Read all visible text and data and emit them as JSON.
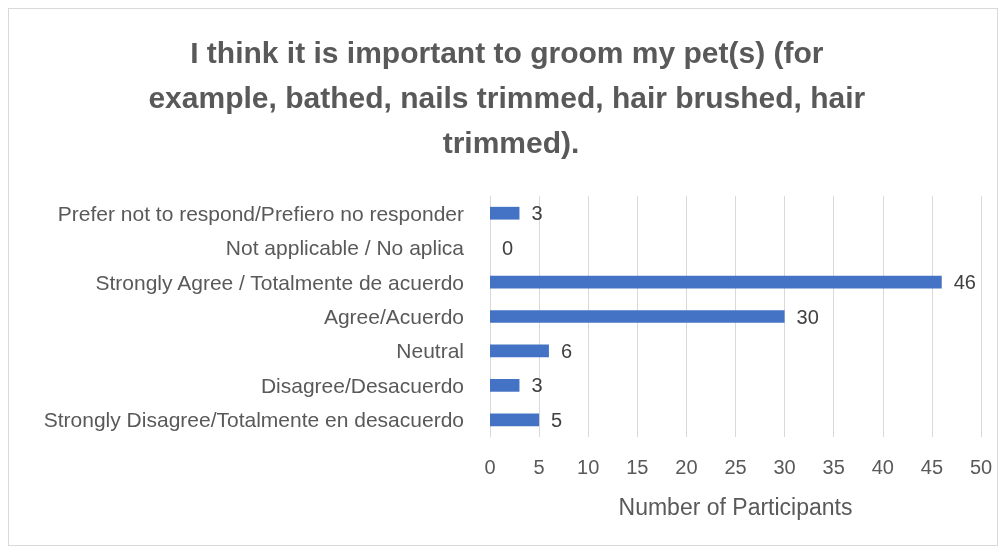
{
  "chart_data": {
    "type": "bar",
    "orientation": "horizontal",
    "title": "I think it is important to groom my pet(s) (for example, bathed, nails trimmed, hair brushed, hair trimmed).",
    "xlabel": "Number of Participants",
    "categories": [
      "Prefer not to respond/Prefiero no responder",
      "Not applicable / No aplica",
      "Strongly Agree / Totalmente de acuerdo",
      "Agree/Acuerdo",
      "Neutral",
      "Disagree/Desacuerdo",
      "Strongly Disagree/Totalmente en desacuerdo"
    ],
    "values": [
      3,
      0,
      46,
      30,
      6,
      3,
      5
    ],
    "color": "#4472c4",
    "xlim": [
      0,
      50
    ],
    "xticks": [
      0,
      5,
      10,
      15,
      20,
      25,
      30,
      35,
      40,
      45,
      50
    ],
    "grid": "x",
    "data_labels": true
  }
}
